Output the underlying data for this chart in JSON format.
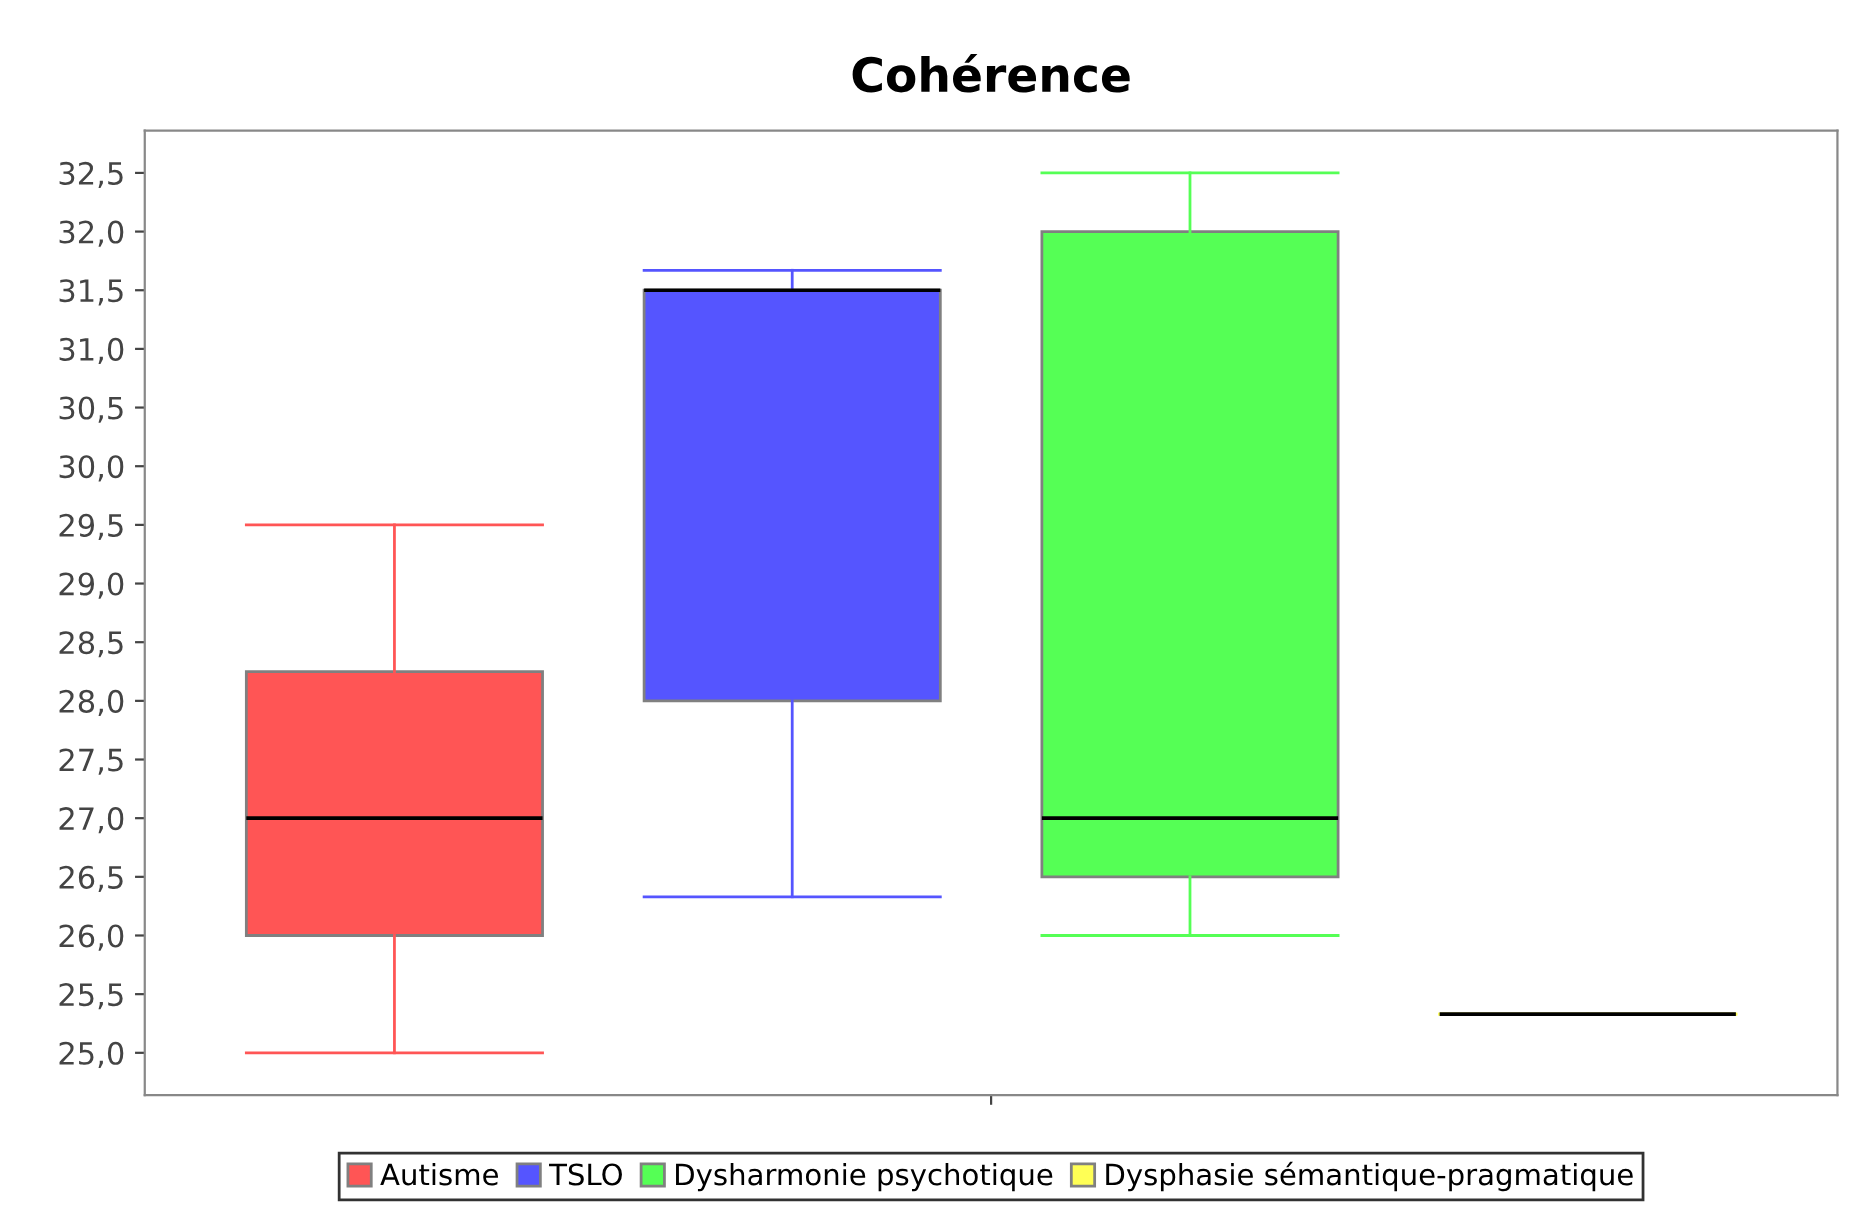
{
  "chart_data": {
    "type": "box",
    "title": "Cohérence",
    "categories": [
      null
    ],
    "series": [
      {
        "name": "Autisme",
        "color": "#ff5555",
        "boxes": [
          {
            "low": 25.0,
            "q1": 26.0,
            "median": 27.0,
            "q3": 28.25,
            "high": 29.5
          }
        ]
      },
      {
        "name": "TSLO",
        "color": "#5555ff",
        "boxes": [
          {
            "low": 26.33,
            "q1": 28.0,
            "median": 31.5,
            "q3": 31.5,
            "high": 31.67
          }
        ]
      },
      {
        "name": "Dysharmonie psychotique",
        "color": "#55ff55",
        "boxes": [
          {
            "low": 26.0,
            "q1": 26.5,
            "median": 27.0,
            "q3": 32.0,
            "high": 32.5
          }
        ]
      },
      {
        "name": "Dysphasie sémantique-pragmatique",
        "color": "#ffff55",
        "boxes": [
          {
            "low": 25.33,
            "q1": 25.33,
            "median": 25.33,
            "q3": 25.33,
            "high": 25.33
          }
        ]
      }
    ],
    "ylim": [
      24.64,
      32.86
    ],
    "yticks": [
      {
        "value": 25,
        "label": "25,0"
      },
      {
        "value": 25.5,
        "label": "25,5"
      },
      {
        "value": 26,
        "label": "26,0"
      },
      {
        "value": 26.5,
        "label": "26,5"
      },
      {
        "value": 27,
        "label": "27,0"
      },
      {
        "value": 27.5,
        "label": "27,5"
      },
      {
        "value": 28,
        "label": "28,0"
      },
      {
        "value": 28.5,
        "label": "28,5"
      },
      {
        "value": 29,
        "label": "29,0"
      },
      {
        "value": 29.5,
        "label": "29,5"
      },
      {
        "value": 30,
        "label": "30,0"
      },
      {
        "value": 30.5,
        "label": "30,5"
      },
      {
        "value": 31,
        "label": "31,0"
      },
      {
        "value": 31.5,
        "label": "31,5"
      },
      {
        "value": 32,
        "label": "32,0"
      },
      {
        "value": 32.5,
        "label": "32,5"
      }
    ],
    "grid": false,
    "legend": "bottom"
  }
}
